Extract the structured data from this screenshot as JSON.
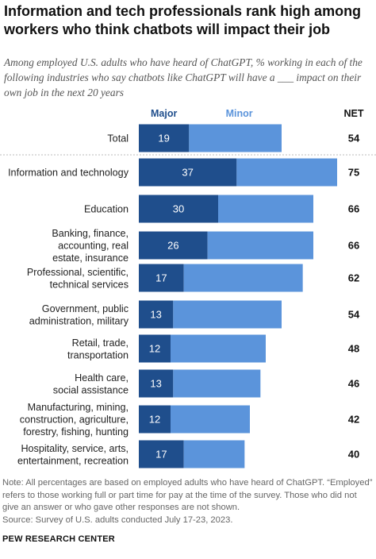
{
  "title": "Information and tech professionals rank high among workers who think chatbots will impact their job",
  "subtitle": "Among employed U.S. adults who have heard of ChatGPT, % working in each of the following industries who say chatbots like ChatGPT will have a ___ impact on their own job in the next 20 years",
  "note": "Note: All percentages are based on employed adults who have heard of ChatGPT. “Employed” refers to those working full or part time for pay at the time of the survey. Those who did not give an answer or who gave other responses are not shown.",
  "source": "Source: Survey of U.S. adults conducted July 17-23, 2023.",
  "footer": "PEW RESEARCH CENTER",
  "colors": {
    "major": "#1f4e8c",
    "minor": "#5b94db",
    "label": "#222222",
    "divider": "#bbbbbb"
  },
  "chart_data": {
    "type": "bar",
    "orientation": "horizontal",
    "stacked": true,
    "legend_position": "top",
    "net_header": "NET",
    "categories": [
      "Total",
      "Information and technology",
      "Education",
      "Banking, finance, accounting, real estate, insurance",
      "Professional, scientific, technical services",
      "Government, public administration, military",
      "Retail, trade, transportation",
      "Health care, social assistance",
      "Manufacturing, mining, construction, agriculture, forestry, fishing, hunting",
      "Hospitality, service, arts, entertainment, recreation"
    ],
    "category_lines": [
      [
        "Total"
      ],
      [
        "Information and technology"
      ],
      [
        "Education"
      ],
      [
        "Banking, finance,",
        "accounting, real",
        "estate, insurance"
      ],
      [
        "Professional, scientific,",
        "technical services"
      ],
      [
        "Government, public",
        "administration, military"
      ],
      [
        "Retail, trade,",
        "transportation"
      ],
      [
        "Health care,",
        "social assistance"
      ],
      [
        "Manufacturing, mining,",
        "construction, agriculture,",
        "forestry, fishing, hunting"
      ],
      [
        "Hospitality, service, arts,",
        "entertainment, recreation"
      ]
    ],
    "series": [
      {
        "name": "Major",
        "values": [
          19,
          37,
          30,
          26,
          17,
          13,
          12,
          13,
          12,
          17
        ]
      },
      {
        "name": "Minor",
        "values": [
          35,
          38,
          36,
          40,
          45,
          41,
          36,
          33,
          30,
          23
        ]
      }
    ],
    "net": [
      54,
      75,
      66,
      66,
      62,
      54,
      48,
      46,
      42,
      40
    ],
    "xlim": [
      0,
      75
    ]
  }
}
